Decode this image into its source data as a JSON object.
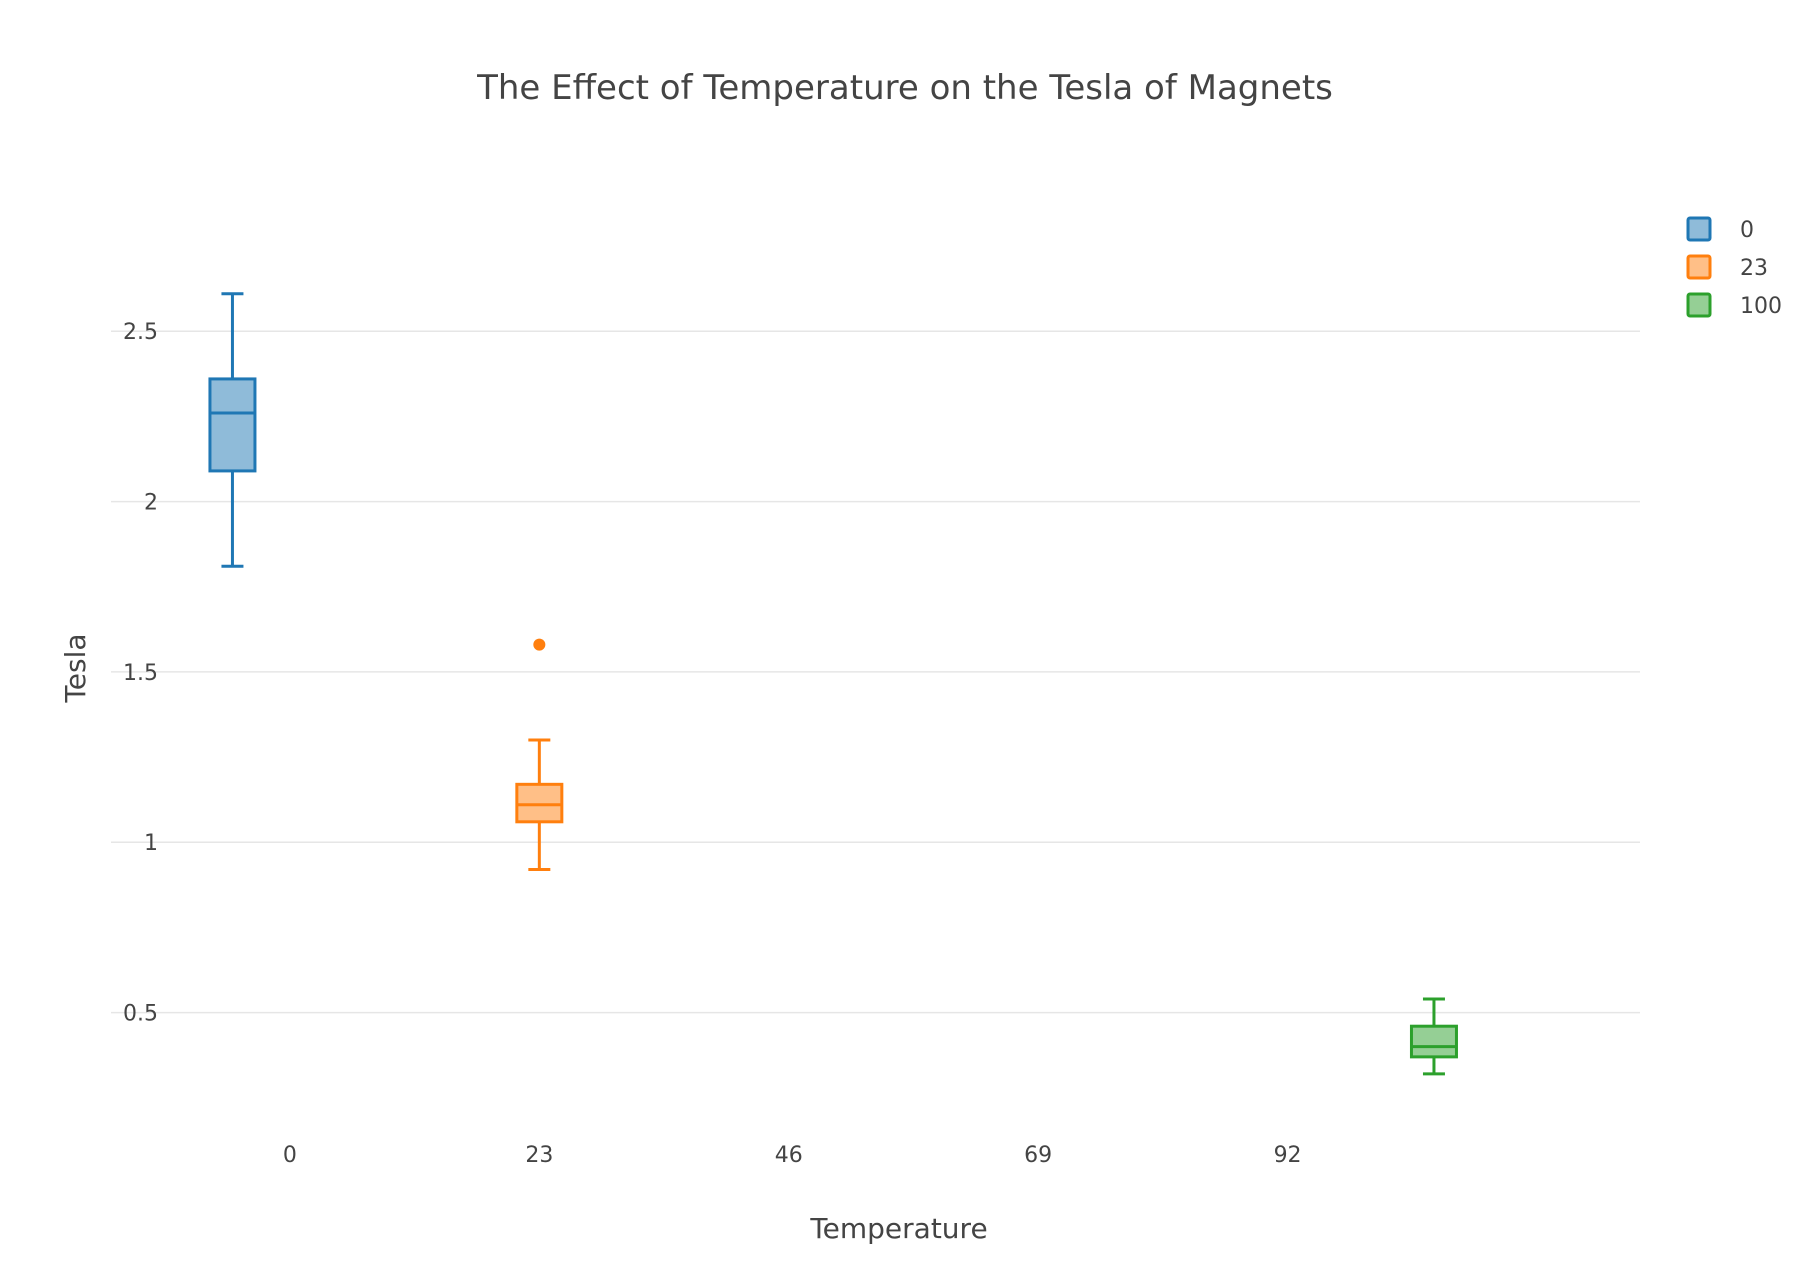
{
  "chart_data": {
    "type": "box",
    "title": "The Effect of Temperature on the Tesla of Magnets",
    "xlabel": "Temperature",
    "ylabel": "Tesla",
    "xlim": [
      -16.5,
      124.5
    ],
    "ylim": [
      0.17,
      2.85
    ],
    "x_ticks": [
      0,
      23,
      46,
      69,
      92
    ],
    "x_tick_labels": [
      "0",
      "23",
      "46",
      "69",
      "92"
    ],
    "y_ticks": [
      0.5,
      1,
      1.5,
      2,
      2.5
    ],
    "y_tick_labels": [
      "0.5",
      "1",
      "1.5",
      "2",
      "2.5"
    ],
    "grid": true,
    "legend_position": "top-right",
    "series": [
      {
        "name": "0",
        "x": -5.3,
        "lower_whisker": 1.81,
        "q1": 2.09,
        "median": 2.26,
        "q3": 2.36,
        "upper_whisker": 2.61,
        "outliers": [],
        "color": "#1f77b4",
        "fill": "#8fbbd9"
      },
      {
        "name": "23",
        "x": 23,
        "lower_whisker": 0.92,
        "q1": 1.06,
        "median": 1.11,
        "q3": 1.17,
        "upper_whisker": 1.3,
        "outliers": [
          1.58
        ],
        "color": "#ff7f0e",
        "fill": "#ffbf87"
      },
      {
        "name": "100",
        "x": 105.5,
        "lower_whisker": 0.32,
        "q1": 0.37,
        "median": 0.4,
        "q3": 0.46,
        "upper_whisker": 0.54,
        "outliers": [],
        "color": "#2ca02c",
        "fill": "#95cf95"
      }
    ]
  }
}
